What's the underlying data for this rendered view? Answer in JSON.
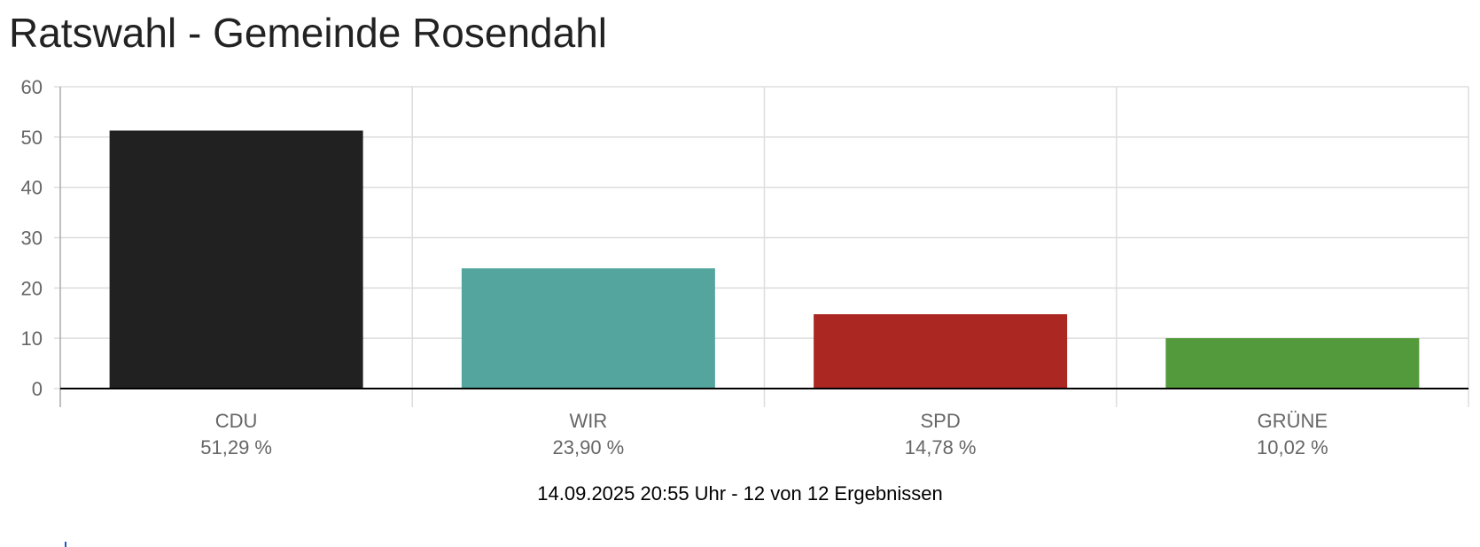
{
  "page": {
    "title": "Ratswahl - Gemeinde Rosendahl",
    "footer": "14.09.2025 20:55 Uhr - 12 von 12 Ergebnissen"
  },
  "chart_data": {
    "type": "bar",
    "title": "",
    "xlabel": "",
    "ylabel": "",
    "ylim": [
      0,
      60
    ],
    "yticks": [
      0,
      10,
      20,
      30,
      40,
      50,
      60
    ],
    "grid": true,
    "categories": [
      "CDU",
      "WIR",
      "SPD",
      "GRÜNE"
    ],
    "values": [
      51.29,
      23.9,
      14.78,
      10.02
    ],
    "value_labels": [
      "51,29 %",
      "23,90 %",
      "14,78 %",
      "10,02 %"
    ],
    "colors": [
      "#212121",
      "#54a59e",
      "#aa2722",
      "#539a3c"
    ]
  }
}
